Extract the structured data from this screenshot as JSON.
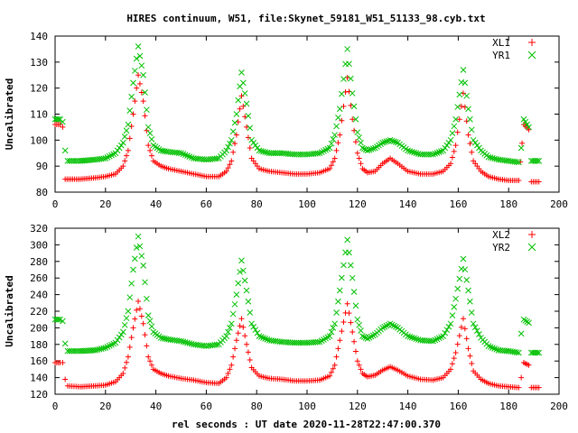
{
  "figure": {
    "title": "HIRES continuum, W51, file:Skynet_59181_W51_51133_98.cyb.txt",
    "xlabel": "rel seconds : UT date 2020-11-28T22:47:00.370"
  },
  "chart_data": [
    {
      "type": "scatter",
      "ylabel": "Uncalibrated",
      "xlim": [
        0,
        200
      ],
      "ylim": [
        80,
        140
      ],
      "xticks": [
        0,
        20,
        40,
        60,
        80,
        100,
        120,
        140,
        160,
        180,
        200
      ],
      "yticks": [
        80,
        90,
        100,
        110,
        120,
        130,
        140
      ],
      "legend": "top-right",
      "grid": false,
      "series": [
        {
          "name": "XL1",
          "marker": "plus",
          "color": "#ff0000",
          "points": [
            [
              0,
              106
            ],
            [
              2,
              106
            ],
            [
              3,
              105
            ],
            [
              4,
              85
            ],
            [
              10,
              85
            ],
            [
              16,
              85.5
            ],
            [
              20,
              86
            ],
            [
              24,
              87
            ],
            [
              27,
              90
            ],
            [
              29,
              96
            ],
            [
              31,
              110
            ],
            [
              33,
              125
            ],
            [
              35,
              115
            ],
            [
              37,
              98
            ],
            [
              39,
              92
            ],
            [
              42,
              90
            ],
            [
              45,
              89
            ],
            [
              50,
              88
            ],
            [
              55,
              87
            ],
            [
              60,
              86
            ],
            [
              65,
              86
            ],
            [
              68,
              88
            ],
            [
              70,
              92
            ],
            [
              72,
              102
            ],
            [
              74,
              117
            ],
            [
              76,
              105
            ],
            [
              78,
              93
            ],
            [
              81,
              89
            ],
            [
              85,
              88
            ],
            [
              90,
              87.5
            ],
            [
              95,
              87
            ],
            [
              100,
              87
            ],
            [
              105,
              87.5
            ],
            [
              109,
              89
            ],
            [
              111,
              93
            ],
            [
              113,
              102
            ],
            [
              116,
              124
            ],
            [
              118,
              108
            ],
            [
              120,
              95
            ],
            [
              122,
              89
            ],
            [
              124,
              87.5
            ],
            [
              127,
              88
            ],
            [
              130,
              91
            ],
            [
              133,
              93
            ],
            [
              136,
              91
            ],
            [
              140,
              88
            ],
            [
              145,
              87
            ],
            [
              150,
              87
            ],
            [
              154,
              88
            ],
            [
              157,
              91
            ],
            [
              159,
              98
            ],
            [
              162,
              118
            ],
            [
              164,
              102
            ],
            [
              166,
              92
            ],
            [
              169,
              88
            ],
            [
              172,
              86
            ],
            [
              176,
              85
            ],
            [
              180,
              84.5
            ],
            [
              184,
              84.5
            ],
            [
              186,
              106
            ],
            [
              188,
              104
            ],
            [
              189,
              84
            ],
            [
              192,
              84
            ]
          ]
        },
        {
          "name": "YR1",
          "marker": "cross",
          "color": "#00c000",
          "points": [
            [
              0,
              108
            ],
            [
              2,
              108
            ],
            [
              3,
              107
            ],
            [
              4,
              96
            ],
            [
              5,
              92
            ],
            [
              10,
              92
            ],
            [
              16,
              92.5
            ],
            [
              20,
              93
            ],
            [
              24,
              95
            ],
            [
              27,
              99
            ],
            [
              29,
              106
            ],
            [
              31,
              122
            ],
            [
              33,
              136
            ],
            [
              35,
              125
            ],
            [
              37,
              105
            ],
            [
              39,
              98
            ],
            [
              42,
              96
            ],
            [
              45,
              95.5
            ],
            [
              50,
              95
            ],
            [
              55,
              93
            ],
            [
              60,
              92.5
            ],
            [
              65,
              93
            ],
            [
              68,
              96
            ],
            [
              70,
              100
            ],
            [
              72,
              110
            ],
            [
              74,
              126
            ],
            [
              76,
              114
            ],
            [
              78,
              100
            ],
            [
              81,
              96
            ],
            [
              85,
              95
            ],
            [
              90,
              95
            ],
            [
              95,
              94.5
            ],
            [
              100,
              94.5
            ],
            [
              105,
              95
            ],
            [
              109,
              97
            ],
            [
              111,
              102
            ],
            [
              113,
              112
            ],
            [
              116,
              135
            ],
            [
              118,
              118
            ],
            [
              120,
              103
            ],
            [
              122,
              97
            ],
            [
              124,
              96
            ],
            [
              127,
              97
            ],
            [
              130,
              99
            ],
            [
              133,
              100
            ],
            [
              136,
              99
            ],
            [
              140,
              96
            ],
            [
              145,
              94.5
            ],
            [
              150,
              94.5
            ],
            [
              154,
              96
            ],
            [
              157,
              100
            ],
            [
              159,
              108
            ],
            [
              162,
              127
            ],
            [
              164,
              112
            ],
            [
              166,
              100
            ],
            [
              169,
              96
            ],
            [
              172,
              93.5
            ],
            [
              176,
              92.5
            ],
            [
              180,
              92
            ],
            [
              184,
              91.5
            ],
            [
              185,
              97
            ],
            [
              186,
              108
            ],
            [
              188,
              105
            ],
            [
              189,
              92
            ],
            [
              192,
              92
            ]
          ]
        }
      ]
    },
    {
      "type": "scatter",
      "ylabel": "Uncalibrated",
      "xlim": [
        0,
        200
      ],
      "ylim": [
        120,
        320
      ],
      "xticks": [
        0,
        20,
        40,
        60,
        80,
        100,
        120,
        140,
        160,
        180,
        200
      ],
      "yticks": [
        120,
        140,
        160,
        180,
        200,
        220,
        240,
        260,
        280,
        300,
        320
      ],
      "legend": "top-right",
      "grid": false,
      "series": [
        {
          "name": "XL2",
          "marker": "plus",
          "color": "#ff0000",
          "points": [
            [
              0,
              158
            ],
            [
              2,
              158
            ],
            [
              3,
              158
            ],
            [
              4,
              138
            ],
            [
              5,
              130
            ],
            [
              10,
              129
            ],
            [
              16,
              130
            ],
            [
              20,
              131
            ],
            [
              24,
              135
            ],
            [
              27,
              145
            ],
            [
              29,
              165
            ],
            [
              31,
              200
            ],
            [
              33,
              232
            ],
            [
              35,
              205
            ],
            [
              37,
              165
            ],
            [
              39,
              150
            ],
            [
              42,
              145
            ],
            [
              45,
              142
            ],
            [
              50,
              139
            ],
            [
              55,
              137
            ],
            [
              60,
              134
            ],
            [
              65,
              133
            ],
            [
              68,
              140
            ],
            [
              70,
              155
            ],
            [
              72,
              185
            ],
            [
              74,
              211
            ],
            [
              76,
              180
            ],
            [
              78,
              152
            ],
            [
              81,
              142
            ],
            [
              85,
              139
            ],
            [
              90,
              138
            ],
            [
              95,
              136
            ],
            [
              100,
              136
            ],
            [
              105,
              137
            ],
            [
              109,
              142
            ],
            [
              111,
              155
            ],
            [
              113,
              185
            ],
            [
              116,
              229
            ],
            [
              118,
              195
            ],
            [
              120,
              160
            ],
            [
              122,
              145
            ],
            [
              124,
              141
            ],
            [
              127,
              143
            ],
            [
              130,
              149
            ],
            [
              133,
              153
            ],
            [
              136,
              149
            ],
            [
              140,
              142
            ],
            [
              145,
              138
            ],
            [
              150,
              137
            ],
            [
              154,
              140
            ],
            [
              157,
              150
            ],
            [
              159,
              170
            ],
            [
              162,
              211
            ],
            [
              164,
              175
            ],
            [
              166,
              148
            ],
            [
              169,
              138
            ],
            [
              172,
              133
            ],
            [
              176,
              130
            ],
            [
              180,
              129
            ],
            [
              184,
              128
            ],
            [
              185,
              140
            ],
            [
              186,
              158
            ],
            [
              188,
              155
            ],
            [
              189,
              128
            ],
            [
              192,
              128
            ]
          ]
        },
        {
          "name": "YR2",
          "marker": "cross",
          "color": "#00c000",
          "points": [
            [
              0,
              210
            ],
            [
              2,
              210
            ],
            [
              3,
              208
            ],
            [
              4,
              181
            ],
            [
              5,
              172
            ],
            [
              10,
              172
            ],
            [
              16,
              173
            ],
            [
              20,
              176
            ],
            [
              24,
              182
            ],
            [
              27,
              195
            ],
            [
              29,
              220
            ],
            [
              31,
              270
            ],
            [
              33,
              310
            ],
            [
              35,
              275
            ],
            [
              37,
              215
            ],
            [
              39,
              195
            ],
            [
              42,
              188
            ],
            [
              45,
              186
            ],
            [
              50,
              184
            ],
            [
              55,
              180
            ],
            [
              60,
              178
            ],
            [
              65,
              180
            ],
            [
              68,
              190
            ],
            [
              70,
              205
            ],
            [
              72,
              240
            ],
            [
              74,
              281
            ],
            [
              76,
              245
            ],
            [
              78,
              205
            ],
            [
              81,
              190
            ],
            [
              85,
              185
            ],
            [
              90,
              183
            ],
            [
              95,
              182
            ],
            [
              100,
              182
            ],
            [
              105,
              183
            ],
            [
              109,
              190
            ],
            [
              111,
              205
            ],
            [
              113,
              245
            ],
            [
              116,
              306
            ],
            [
              118,
              260
            ],
            [
              120,
              210
            ],
            [
              122,
              190
            ],
            [
              124,
              187
            ],
            [
              127,
              192
            ],
            [
              130,
              200
            ],
            [
              133,
              205
            ],
            [
              136,
              200
            ],
            [
              140,
              190
            ],
            [
              145,
              185
            ],
            [
              150,
              184
            ],
            [
              154,
              190
            ],
            [
              157,
              205
            ],
            [
              159,
              235
            ],
            [
              162,
              283
            ],
            [
              164,
              245
            ],
            [
              166,
              205
            ],
            [
              169,
              188
            ],
            [
              172,
              178
            ],
            [
              176,
              173
            ],
            [
              180,
              172
            ],
            [
              184,
              170
            ],
            [
              185,
              193
            ],
            [
              186,
              210
            ],
            [
              188,
              206
            ],
            [
              189,
              170
            ],
            [
              192,
              170
            ]
          ]
        }
      ]
    }
  ]
}
